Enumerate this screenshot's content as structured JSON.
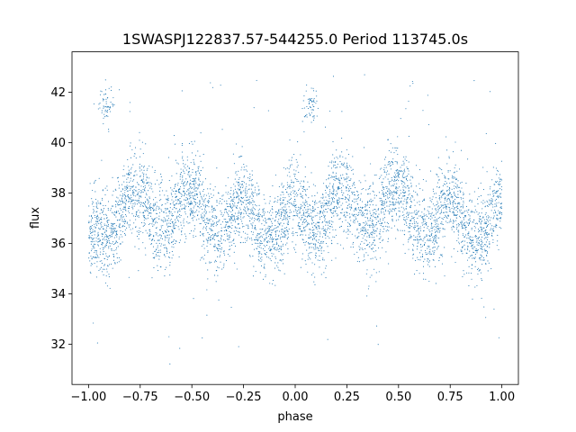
{
  "chart_data": {
    "type": "scatter",
    "title": "1SWASPJ122837.57-544255.0 Period 113745.0s",
    "xlabel": "phase",
    "ylabel": "flux",
    "xlim": [
      -1.08,
      1.08
    ],
    "ylim": [
      30.4,
      43.6
    ],
    "xticks": [
      -1.0,
      -0.75,
      -0.5,
      -0.25,
      0.0,
      0.25,
      0.5,
      0.75,
      1.0
    ],
    "xtick_labels": [
      "−1.00",
      "−0.75",
      "−0.50",
      "−0.25",
      "0.00",
      "0.25",
      "0.50",
      "0.75",
      "1.00"
    ],
    "yticks": [
      32,
      34,
      36,
      38,
      40,
      42
    ],
    "ytick_labels": [
      "32",
      "34",
      "36",
      "38",
      "40",
      "42"
    ],
    "grid": false,
    "marker_color": "#1f77b4",
    "x_range": [
      -1.0,
      1.0
    ],
    "flux_baseline": 37.1,
    "flux_modulation": [
      {
        "phase_center": -0.78,
        "offset": 1.0
      },
      {
        "phase_center": -0.66,
        "offset": -0.4
      },
      {
        "phase_center": -0.5,
        "offset": 0.9
      },
      {
        "phase_center": -0.38,
        "offset": -0.7
      },
      {
        "phase_center": -0.25,
        "offset": 0.6
      },
      {
        "phase_center": -0.12,
        "offset": -0.9
      },
      {
        "phase_center": 0.0,
        "offset": 0.6
      },
      {
        "phase_center": 0.1,
        "offset": -0.7
      },
      {
        "phase_center": 0.22,
        "offset": 1.0
      },
      {
        "phase_center": 0.34,
        "offset": -0.4
      },
      {
        "phase_center": 0.5,
        "offset": 0.9
      },
      {
        "phase_center": 0.62,
        "offset": -0.7
      },
      {
        "phase_center": 0.75,
        "offset": 0.6
      },
      {
        "phase_center": 0.88,
        "offset": -0.9
      },
      {
        "phase_center": 1.0,
        "offset": 0.6
      },
      {
        "phase_center": -0.9,
        "offset": -0.7
      }
    ],
    "flux_scatter": 1.0,
    "outlier_fraction": 0.02,
    "outlier_range": [
      31.0,
      43.0
    ],
    "bright_clusters": [
      {
        "phase": -0.92,
        "flux": 41.5
      },
      {
        "phase": 0.07,
        "flux": 41.5
      }
    ]
  }
}
